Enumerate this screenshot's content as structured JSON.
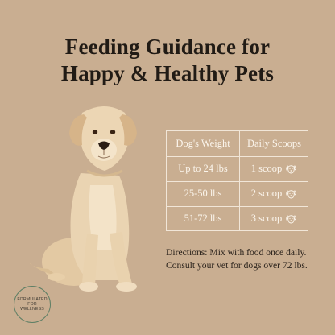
{
  "title": {
    "line1": "Feeding Guidance for",
    "line2": "Happy & Healthy Pets"
  },
  "table": {
    "headers": [
      "Dog's Weight",
      "Daily Scoops"
    ],
    "rows": [
      {
        "weight": "Up to 24 lbs",
        "scoops": "1 scoop",
        "icon": "dog-face-icon"
      },
      {
        "weight": "25-50 lbs",
        "scoops": "2 scoop",
        "icon": "dog-face-icon"
      },
      {
        "weight": "51-72 lbs",
        "scoops": "3 scoop",
        "icon": "dog-face-icon"
      }
    ]
  },
  "directions": {
    "line1": "Directions: Mix with food once daily.",
    "line2": "Consult your vet for dogs over 72 lbs."
  },
  "badge": {
    "text": "FORMULATED FOR WELLNESS"
  },
  "colors": {
    "background": "#c9ae91",
    "table_line": "#f1e6d8",
    "badge_ring": "#5e7f65"
  },
  "image": {
    "subject": "labrador-retriever"
  }
}
